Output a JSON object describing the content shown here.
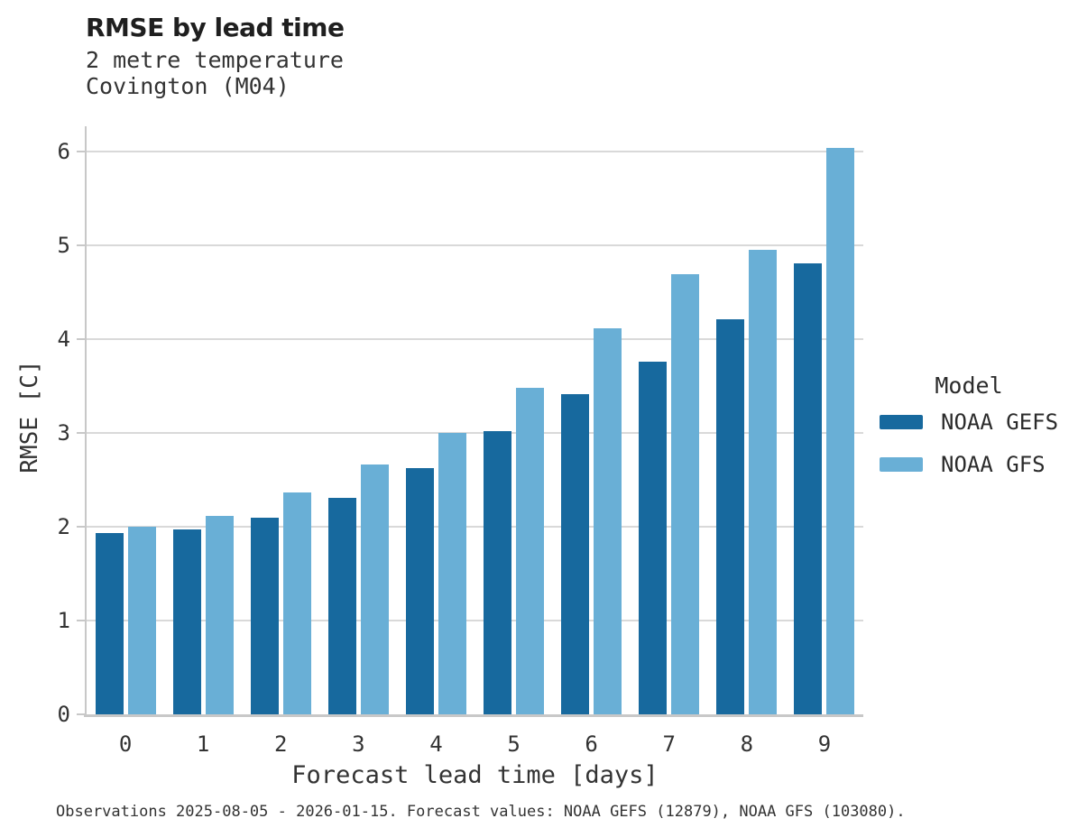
{
  "header": {
    "title": "RMSE by lead time",
    "subtitle1": "2 metre temperature",
    "subtitle2": "Covington (M04)"
  },
  "legend": {
    "title": "Model",
    "entries": [
      {
        "label": "NOAA GEFS",
        "color": "#17699e"
      },
      {
        "label": "NOAA GFS",
        "color": "#69afd6"
      }
    ]
  },
  "caption": "Observations 2025-08-05 - 2026-01-15. Forecast values: NOAA GEFS (12879), NOAA GFS (103080).",
  "colors": {
    "gefs": "#17699e",
    "gfs": "#69afd6",
    "grid": "#d9d9d9",
    "axis": "#c8c8c8",
    "text": "#333333",
    "title": "#1f1f1f",
    "background": "#ffffff"
  },
  "chart_data": {
    "type": "bar",
    "title": "RMSE by lead time",
    "subtitle": [
      "2 metre temperature",
      "Covington (M04)"
    ],
    "categories": [
      "0",
      "1",
      "2",
      "3",
      "4",
      "5",
      "6",
      "7",
      "8",
      "9"
    ],
    "series": [
      {
        "name": "NOAA GEFS",
        "color": "#17699e",
        "values": [
          1.93,
          1.97,
          2.1,
          2.31,
          2.63,
          3.02,
          3.41,
          3.76,
          4.21,
          4.81
        ]
      },
      {
        "name": "NOAA GFS",
        "color": "#69afd6",
        "values": [
          2.0,
          2.12,
          2.37,
          2.66,
          3.0,
          3.48,
          4.12,
          4.69,
          4.95,
          6.04
        ]
      }
    ],
    "xlabel": "Forecast lead time [days]",
    "ylabel": "RMSE [C]",
    "ylim": [
      0,
      6.27
    ],
    "yticks": [
      0,
      1,
      2,
      3,
      4,
      5,
      6
    ],
    "grid": true,
    "legend_title": "Model",
    "legend_position": "right"
  }
}
